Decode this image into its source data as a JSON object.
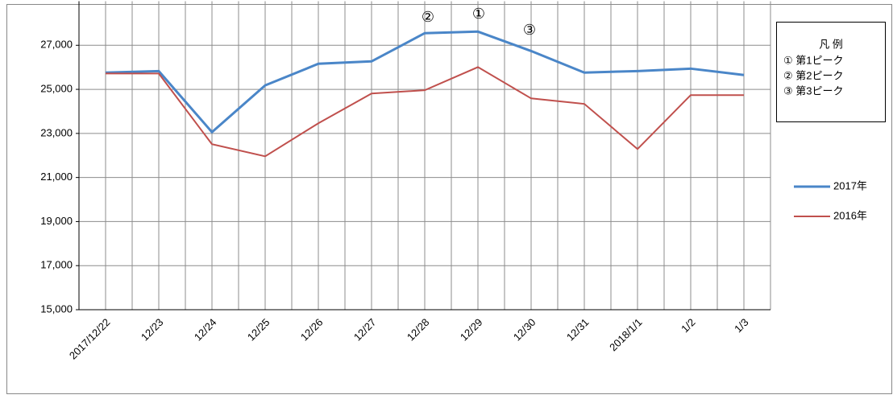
{
  "chart_data": {
    "type": "line",
    "categories": [
      "2017/12/22",
      "12/23",
      "12/24",
      "12/25",
      "12/26",
      "12/27",
      "12/28",
      "12/29",
      "12/30",
      "12/31",
      "2018/1/1",
      "1/2",
      "1/3"
    ],
    "series": [
      {
        "name": "2017年",
        "color": "#4a86c8",
        "values": [
          25760,
          25830,
          23060,
          25180,
          26160,
          26270,
          27550,
          27620,
          26740,
          25760,
          25830,
          25940,
          25650
        ]
      },
      {
        "name": "2016年",
        "color": "#c0504d",
        "values": [
          25720,
          25720,
          22510,
          21960,
          23460,
          24810,
          24960,
          26010,
          24590,
          24340,
          22290,
          24740,
          24740
        ]
      }
    ],
    "ylim": [
      15000,
      29000
    ],
    "yticks": [
      {
        "value": 15000,
        "label": "15,000"
      },
      {
        "value": 17000,
        "label": "17,000"
      },
      {
        "value": 19000,
        "label": "19,000"
      },
      {
        "value": 21000,
        "label": "21,000"
      },
      {
        "value": 23000,
        "label": "23,000"
      },
      {
        "value": 25000,
        "label": "25,000"
      },
      {
        "value": 27000,
        "label": "27,000"
      }
    ],
    "grid": true,
    "annotations": [
      "②",
      "①",
      "③"
    ],
    "peak_legend": {
      "title": "凡 例",
      "items": [
        "① 第1ピーク",
        "② 第2ピーク",
        "③ 第3ピーク"
      ]
    }
  }
}
